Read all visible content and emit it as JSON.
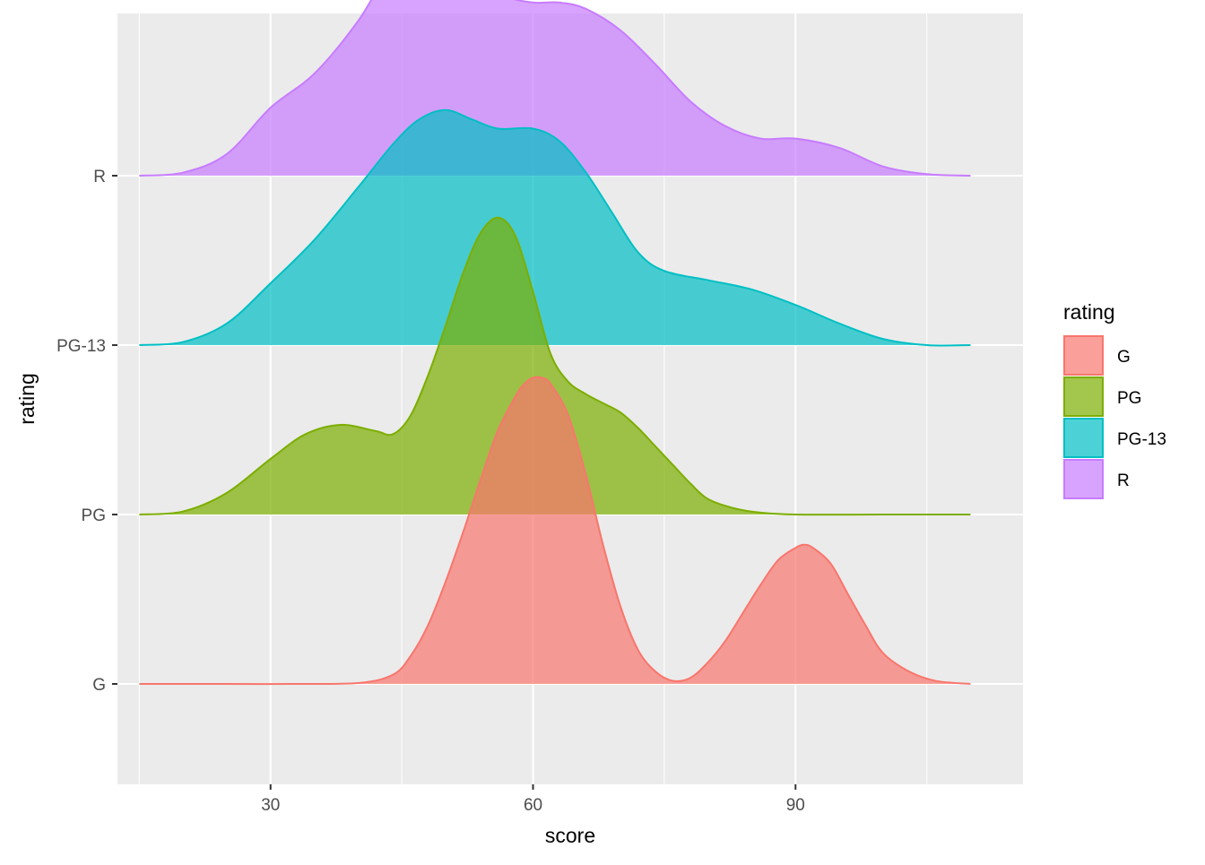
{
  "chart_data": {
    "type": "ridgeline",
    "xlabel": "score",
    "ylabel": "rating",
    "xlim": [
      12.5,
      116
    ],
    "x_ticks": [
      30,
      60,
      90
    ],
    "x_tick_labels": [
      "30",
      "60",
      "90"
    ],
    "categories": [
      "G",
      "PG",
      "PG-13",
      "R"
    ],
    "grid": true,
    "legend": {
      "title": "rating",
      "position": "right",
      "entries": [
        "G",
        "PG",
        "PG-13",
        "R"
      ]
    },
    "series": [
      {
        "name": "G",
        "color": "#F8766D",
        "x": [
          15,
          24,
          32,
          40,
          44,
          46,
          48,
          50,
          52,
          54,
          56,
          58,
          59,
          60,
          61,
          62,
          64,
          66,
          68,
          70,
          72,
          74,
          76,
          78,
          80,
          82,
          84,
          86,
          88,
          90,
          91,
          92,
          94,
          96,
          98,
          100,
          103,
          106,
          110
        ],
        "y": [
          0,
          0,
          0,
          0.003,
          0.03,
          0.09,
          0.19,
          0.33,
          0.49,
          0.66,
          0.82,
          0.93,
          0.97,
          0.99,
          0.99,
          0.97,
          0.87,
          0.68,
          0.45,
          0.25,
          0.11,
          0.04,
          0.01,
          0.02,
          0.07,
          0.14,
          0.23,
          0.32,
          0.4,
          0.44,
          0.45,
          0.44,
          0.39,
          0.29,
          0.19,
          0.1,
          0.04,
          0.01,
          0
        ]
      },
      {
        "name": "PG",
        "color": "#7CAE00",
        "x": [
          15,
          20,
          25,
          30,
          34,
          38,
          42,
          44,
          46,
          48,
          50,
          52,
          54,
          56,
          58,
          60,
          62,
          64,
          66,
          68,
          70,
          72,
          74,
          76,
          78,
          80,
          83,
          86,
          90,
          100,
          110
        ],
        "y": [
          0,
          0.01,
          0.07,
          0.18,
          0.26,
          0.29,
          0.27,
          0.26,
          0.32,
          0.45,
          0.61,
          0.78,
          0.91,
          0.96,
          0.9,
          0.72,
          0.52,
          0.43,
          0.39,
          0.36,
          0.33,
          0.28,
          0.22,
          0.16,
          0.1,
          0.05,
          0.02,
          0.006,
          0,
          0,
          0
        ]
      },
      {
        "name": "PG-13",
        "color": "#00BFC4",
        "x": [
          15,
          20,
          25,
          30,
          35,
          40,
          44,
          47,
          50,
          53,
          56,
          60,
          63,
          66,
          69,
          72,
          75,
          80,
          85,
          90,
          95,
          100,
          105,
          110
        ],
        "y": [
          0,
          0.01,
          0.07,
          0.2,
          0.34,
          0.51,
          0.65,
          0.73,
          0.76,
          0.73,
          0.7,
          0.7,
          0.66,
          0.56,
          0.43,
          0.3,
          0.24,
          0.21,
          0.18,
          0.13,
          0.07,
          0.02,
          0,
          0
        ]
      },
      {
        "name": "R",
        "color": "#C77CFF",
        "x": [
          15,
          20,
          25,
          30,
          35,
          40,
          44,
          48,
          51,
          54,
          57,
          60,
          63,
          66,
          70,
          74,
          78,
          82,
          86,
          90,
          95,
          100,
          105,
          110
        ],
        "y": [
          0,
          0.01,
          0.07,
          0.22,
          0.33,
          0.5,
          0.68,
          0.76,
          0.73,
          0.64,
          0.58,
          0.56,
          0.56,
          0.54,
          0.47,
          0.36,
          0.24,
          0.16,
          0.12,
          0.12,
          0.09,
          0.03,
          0.005,
          0
        ]
      }
    ]
  }
}
